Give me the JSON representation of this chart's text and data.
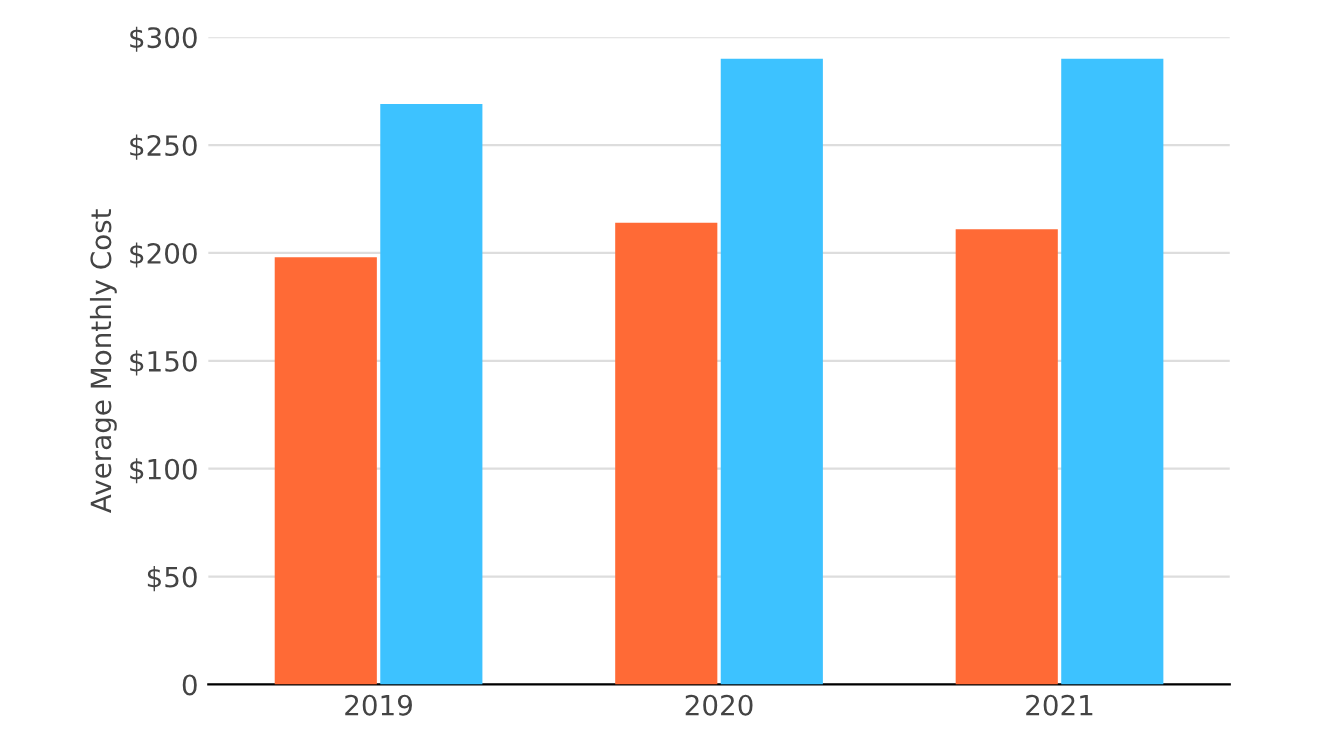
{
  "chart_data": {
    "type": "bar",
    "ylabel": "Average Monthly Cost",
    "categories": [
      "2019",
      "2020",
      "2021"
    ],
    "series": [
      {
        "color": "#ff6a36",
        "values": [
          198,
          214,
          211
        ]
      },
      {
        "color": "#3dc2ff",
        "values": [
          269,
          290,
          290
        ]
      }
    ],
    "ylim": [
      0,
      300
    ],
    "yticks": [
      0,
      {
        "value": 50,
        "label": "$50"
      },
      {
        "value": 100,
        "label": "$100"
      },
      {
        "value": 150,
        "label": "$150"
      },
      {
        "value": 200,
        "label": "$200"
      },
      {
        "value": 250,
        "label": "$250"
      },
      {
        "value": 300,
        "label": "$300"
      }
    ],
    "grid": "y",
    "legend": false
  }
}
